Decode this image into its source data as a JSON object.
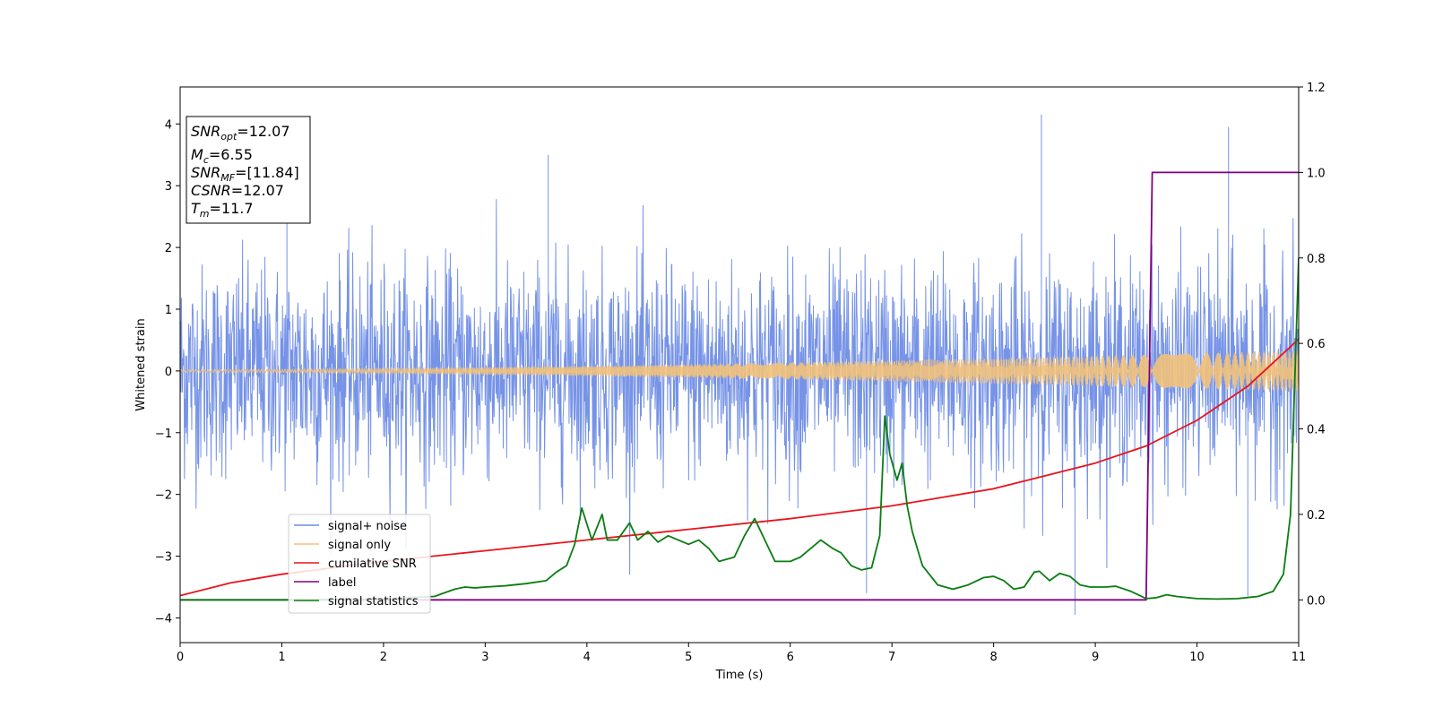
{
  "chart_data": {
    "type": "line",
    "xlabel": "Time (s)",
    "ylabel": "Whitened strain",
    "xlim": [
      0,
      11
    ],
    "ylim": [
      -4.4,
      4.6
    ],
    "y2lim": [
      -0.1,
      1.2
    ],
    "xticks": [
      "0",
      "1",
      "2",
      "3",
      "4",
      "5",
      "6",
      "7",
      "8",
      "9",
      "10",
      "11"
    ],
    "yticks": [
      "−4",
      "−3",
      "−2",
      "−1",
      "0",
      "1",
      "2",
      "3",
      "4"
    ],
    "y2ticks": [
      "0.0",
      "0.2",
      "0.4",
      "0.6",
      "0.8",
      "1.0",
      "1.2"
    ],
    "grid": false,
    "legend_position": "lower-left",
    "info_box": {
      "snr_opt": {
        "main": "SNR",
        "sub": "opt",
        "value": "=12.07"
      },
      "mc": {
        "main": "M",
        "sub": "c",
        "value": "=6.55"
      },
      "snr_mf": {
        "main": "SNR",
        "sub": "MF",
        "value": "=[11.84]"
      },
      "csnr": {
        "main": "CSNR",
        "value": "=12.07"
      },
      "tm": {
        "main": "T",
        "sub": "m",
        "value": "=11.7"
      }
    },
    "series": [
      {
        "name": "signal+ noise",
        "color": "#6f8de6",
        "axis": "left",
        "kind": "noise",
        "envelope_peak": [
          4.2,
          -3.95
        ],
        "notable_spikes": [
          [
            1.05,
            2.75
          ],
          [
            3.62,
            3.5
          ],
          [
            8.47,
            4.15
          ],
          [
            10.31,
            3.95
          ],
          [
            8.8,
            -3.95
          ],
          [
            6.75,
            -3.6
          ],
          [
            10.5,
            -3.65
          ]
        ]
      },
      {
        "name": "signal only",
        "color": "#f2c27a",
        "axis": "left",
        "kind": "chirp",
        "amplitude_start": 0.02,
        "amplitude_end": 0.33
      },
      {
        "name": "cumilative SNR",
        "color": "#e8141c",
        "axis": "right",
        "x": [
          0,
          0.5,
          1,
          2,
          3,
          4,
          5,
          6,
          7,
          8,
          9,
          9.5,
          10,
          10.5,
          11
        ],
        "y": [
          0.01,
          0.04,
          0.06,
          0.09,
          0.115,
          0.14,
          0.165,
          0.19,
          0.22,
          0.26,
          0.32,
          0.36,
          0.42,
          0.5,
          0.61
        ]
      },
      {
        "name": "label",
        "color": "#800080",
        "axis": "right",
        "x": [
          0,
          9.5,
          9.56,
          11
        ],
        "y": [
          0,
          0,
          1,
          1
        ]
      },
      {
        "name": "signal statistics",
        "color": "#0a7d12",
        "axis": "right",
        "x": [
          0,
          1,
          2,
          2.5,
          2.7,
          2.8,
          2.9,
          3.0,
          3.2,
          3.4,
          3.6,
          3.7,
          3.8,
          3.88,
          3.95,
          4.05,
          4.15,
          4.2,
          4.3,
          4.42,
          4.5,
          4.6,
          4.7,
          4.8,
          4.9,
          5.0,
          5.1,
          5.2,
          5.3,
          5.45,
          5.55,
          5.65,
          5.75,
          5.85,
          6.0,
          6.1,
          6.2,
          6.3,
          6.42,
          6.5,
          6.6,
          6.7,
          6.8,
          6.88,
          6.93,
          6.98,
          7.05,
          7.1,
          7.15,
          7.2,
          7.3,
          7.45,
          7.6,
          7.75,
          7.9,
          8.0,
          8.1,
          8.2,
          8.3,
          8.4,
          8.45,
          8.55,
          8.65,
          8.75,
          8.85,
          8.95,
          9.1,
          9.2,
          9.35,
          9.5,
          9.6,
          9.7,
          9.8,
          10.0,
          10.2,
          10.4,
          10.6,
          10.75,
          10.85,
          10.92,
          11.0
        ],
        "y": [
          0,
          0,
          0.002,
          0.008,
          0.025,
          0.03,
          0.028,
          0.03,
          0.033,
          0.038,
          0.045,
          0.065,
          0.08,
          0.13,
          0.215,
          0.14,
          0.2,
          0.14,
          0.14,
          0.18,
          0.14,
          0.16,
          0.135,
          0.15,
          0.14,
          0.13,
          0.14,
          0.12,
          0.09,
          0.1,
          0.15,
          0.19,
          0.14,
          0.09,
          0.09,
          0.1,
          0.12,
          0.14,
          0.12,
          0.11,
          0.08,
          0.07,
          0.075,
          0.15,
          0.43,
          0.34,
          0.28,
          0.32,
          0.22,
          0.16,
          0.08,
          0.035,
          0.025,
          0.035,
          0.052,
          0.055,
          0.045,
          0.025,
          0.03,
          0.065,
          0.067,
          0.045,
          0.062,
          0.055,
          0.035,
          0.03,
          0.03,
          0.032,
          0.02,
          0.003,
          0.005,
          0.012,
          0.008,
          0.003,
          0.002,
          0.003,
          0.008,
          0.02,
          0.06,
          0.2,
          0.8
        ]
      }
    ]
  }
}
